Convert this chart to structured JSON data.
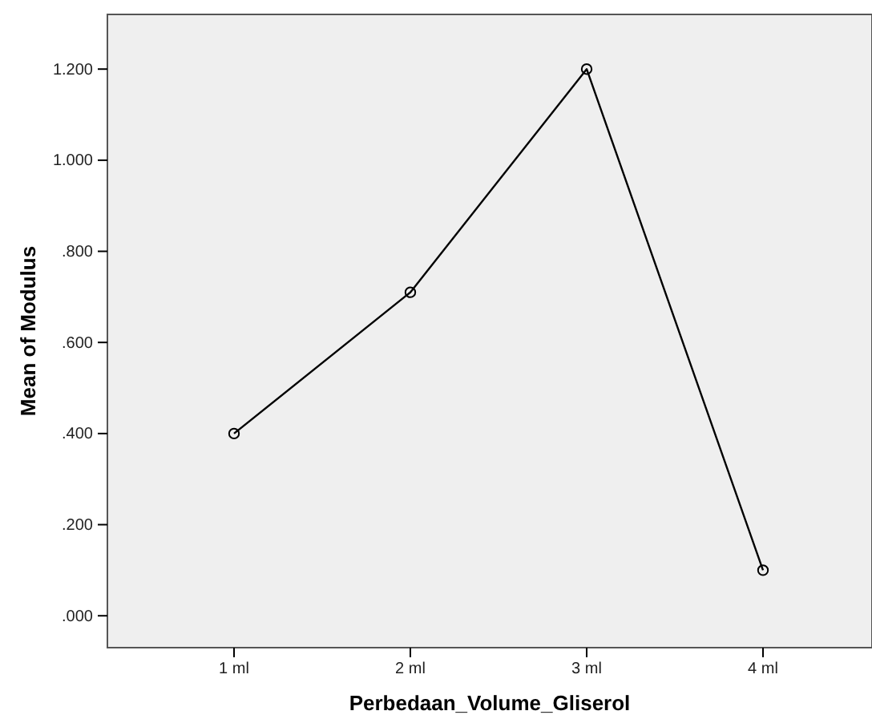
{
  "chart_data": {
    "type": "line",
    "xlabel": "Perbedaan_Volume_Gliserol",
    "ylabel": "Mean of Modulus",
    "categories": [
      "1 ml",
      "2 ml",
      "3 ml",
      "4 ml"
    ],
    "series": [
      {
        "color": "#000000",
        "values": [
          0.4,
          0.71,
          1.2,
          0.1
        ]
      }
    ],
    "ylim": [
      -0.07,
      1.32
    ],
    "yticks": [
      {
        "value": 0,
        "label": ".000"
      },
      {
        "value": 0.2,
        "label": ".200"
      },
      {
        "value": 0.4,
        "label": ".400"
      },
      {
        "value": 0.6,
        "label": ".600"
      },
      {
        "value": 0.8,
        "label": ".800"
      },
      {
        "value": 1.0,
        "label": "1.000"
      },
      {
        "value": 1.2,
        "label": "1.200"
      }
    ],
    "marker": "circle",
    "line_style": "solid"
  }
}
